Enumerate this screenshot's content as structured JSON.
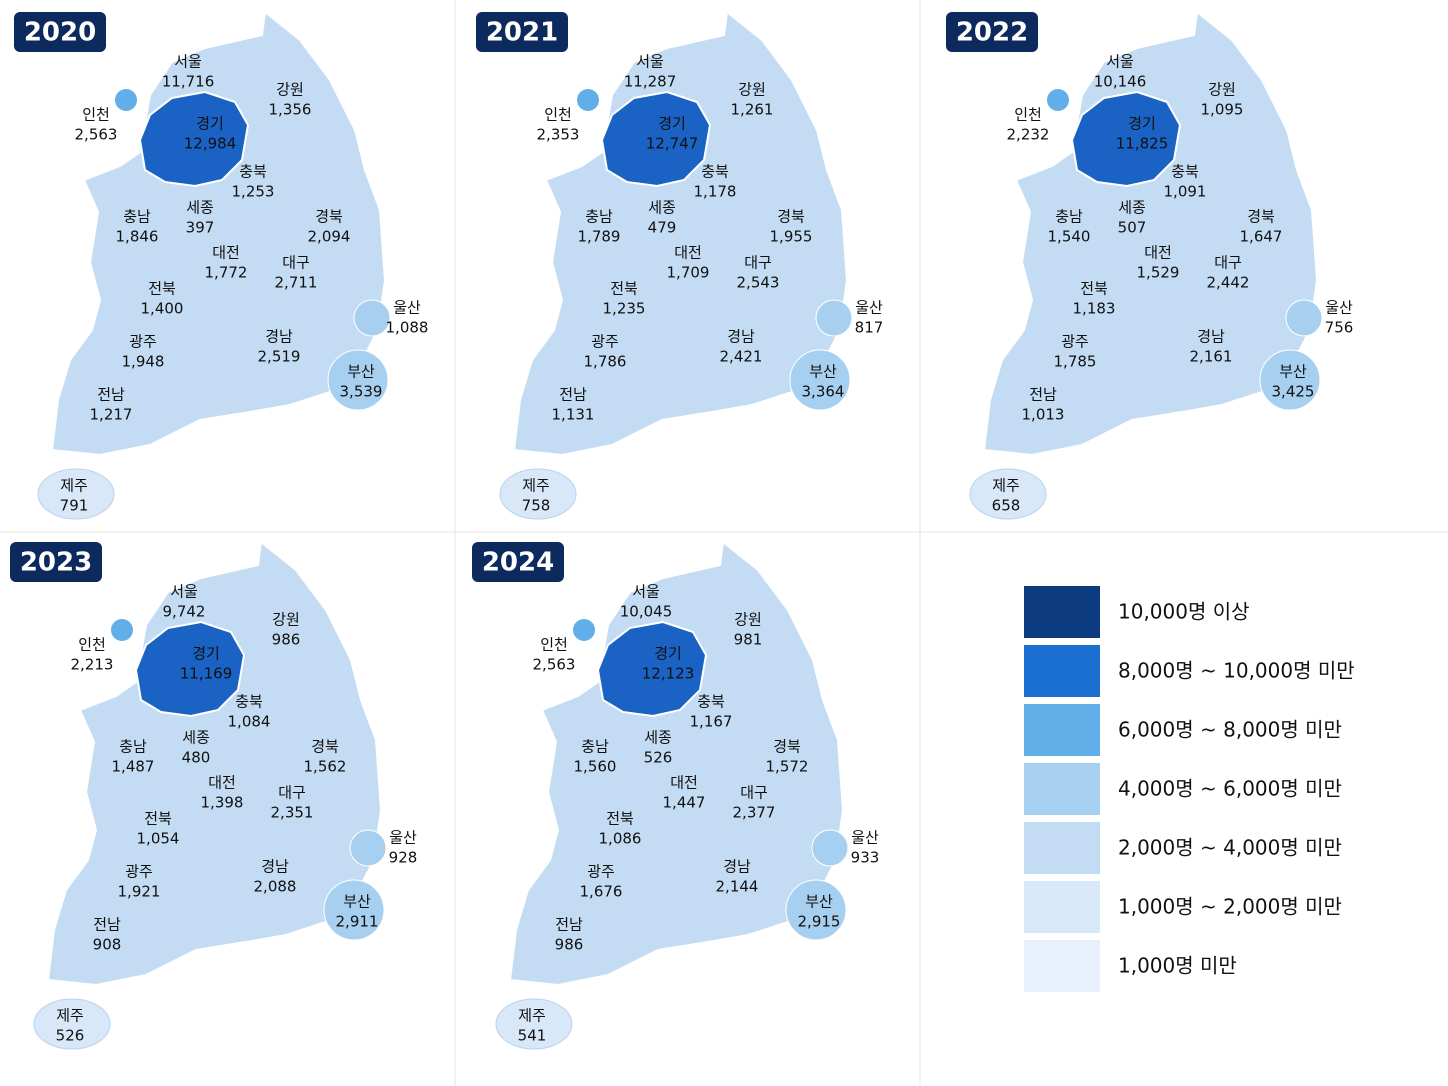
{
  "maps": [
    {
      "year": "2020",
      "regions": [
        [
          "서울",
          "11,716"
        ],
        [
          "강원",
          "1,356"
        ],
        [
          "인천",
          "2,563"
        ],
        [
          "경기",
          "12,984"
        ],
        [
          "충북",
          "1,253"
        ],
        [
          "세종",
          "397"
        ],
        [
          "충남",
          "1,846"
        ],
        [
          "경북",
          "2,094"
        ],
        [
          "대전",
          "1,772"
        ],
        [
          "대구",
          "2,711"
        ],
        [
          "전북",
          "1,400"
        ],
        [
          "울산",
          "1,088"
        ],
        [
          "광주",
          "1,948"
        ],
        [
          "경남",
          "2,519"
        ],
        [
          "부산",
          "3,539"
        ],
        [
          "전남",
          "1,217"
        ],
        [
          "제주",
          "791"
        ]
      ]
    },
    {
      "year": "2021",
      "regions": [
        [
          "서울",
          "11,287"
        ],
        [
          "강원",
          "1,261"
        ],
        [
          "인천",
          "2,353"
        ],
        [
          "경기",
          "12,747"
        ],
        [
          "충북",
          "1,178"
        ],
        [
          "세종",
          "479"
        ],
        [
          "충남",
          "1,789"
        ],
        [
          "경북",
          "1,955"
        ],
        [
          "대전",
          "1,709"
        ],
        [
          "대구",
          "2,543"
        ],
        [
          "전북",
          "1,235"
        ],
        [
          "울산",
          "817"
        ],
        [
          "광주",
          "1,786"
        ],
        [
          "경남",
          "2,421"
        ],
        [
          "부산",
          "3,364"
        ],
        [
          "전남",
          "1,131"
        ],
        [
          "제주",
          "758"
        ]
      ]
    },
    {
      "year": "2022",
      "regions": [
        [
          "서울",
          "10,146"
        ],
        [
          "강원",
          "1,095"
        ],
        [
          "인천",
          "2,232"
        ],
        [
          "경기",
          "11,825"
        ],
        [
          "충북",
          "1,091"
        ],
        [
          "세종",
          "507"
        ],
        [
          "충남",
          "1,540"
        ],
        [
          "경북",
          "1,647"
        ],
        [
          "대전",
          "1,529"
        ],
        [
          "대구",
          "2,442"
        ],
        [
          "전북",
          "1,183"
        ],
        [
          "울산",
          "756"
        ],
        [
          "광주",
          "1,785"
        ],
        [
          "경남",
          "2,161"
        ],
        [
          "부산",
          "3,425"
        ],
        [
          "전남",
          "1,013"
        ],
        [
          "제주",
          "658"
        ]
      ]
    },
    {
      "year": "2023",
      "regions": [
        [
          "서울",
          "9,742"
        ],
        [
          "강원",
          "986"
        ],
        [
          "인천",
          "2,213"
        ],
        [
          "경기",
          "11,169"
        ],
        [
          "충북",
          "1,084"
        ],
        [
          "세종",
          "480"
        ],
        [
          "충남",
          "1,487"
        ],
        [
          "경북",
          "1,562"
        ],
        [
          "대전",
          "1,398"
        ],
        [
          "대구",
          "2,351"
        ],
        [
          "전북",
          "1,054"
        ],
        [
          "울산",
          "928"
        ],
        [
          "광주",
          "1,921"
        ],
        [
          "경남",
          "2,088"
        ],
        [
          "부산",
          "2,911"
        ],
        [
          "전남",
          "908"
        ],
        [
          "제주",
          "526"
        ]
      ]
    },
    {
      "year": "2024",
      "regions": [
        [
          "서울",
          "10,045"
        ],
        [
          "강원",
          "981"
        ],
        [
          "인천",
          "2,563"
        ],
        [
          "경기",
          "12,123"
        ],
        [
          "충북",
          "1,167"
        ],
        [
          "세종",
          "526"
        ],
        [
          "충남",
          "1,560"
        ],
        [
          "경북",
          "1,572"
        ],
        [
          "대전",
          "1,447"
        ],
        [
          "대구",
          "2,377"
        ],
        [
          "전북",
          "1,086"
        ],
        [
          "울산",
          "933"
        ],
        [
          "광주",
          "1,676"
        ],
        [
          "경남",
          "2,144"
        ],
        [
          "부산",
          "2,915"
        ],
        [
          "전남",
          "986"
        ],
        [
          "제주",
          "541"
        ]
      ]
    }
  ],
  "legend": [
    "10,000명 이상",
    "8,000명 ~ 10,000명 미만",
    "6,000명 ~ 8,000명 미만",
    "4,000명 ~ 6,000명 미만",
    "2,000명 ~ 4,000명 미만",
    "1,000명 ~ 2,000명 미만",
    "1,000명 미만"
  ]
}
